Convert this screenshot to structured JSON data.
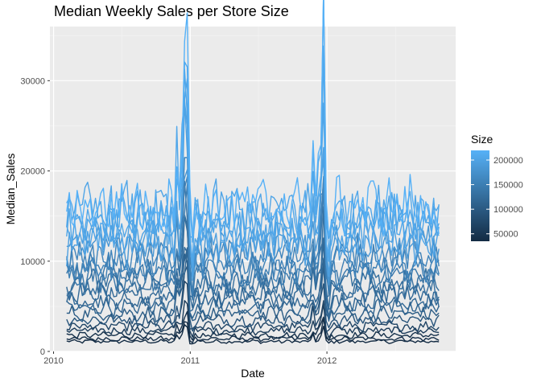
{
  "chart_data": {
    "type": "line",
    "title": "Median Weekly Sales per Store Size",
    "xlabel": "Date",
    "ylabel": "Median_Sales",
    "x_range": [
      "2010-02-05",
      "2012-10-26"
    ],
    "x_ticks": [
      "2010",
      "2011",
      "2012"
    ],
    "ylim": [
      0,
      36000
    ],
    "y_ticks": [
      0,
      10000,
      20000,
      30000
    ],
    "grid": true,
    "background": "#ebebeb",
    "legend": {
      "title": "Size",
      "placement": "right",
      "type": "colorbar",
      "min": 34875,
      "max": 219622,
      "ticks": [
        50000,
        100000,
        150000,
        200000
      ],
      "color_low": "#132b43",
      "color_high": "#56b1f7"
    },
    "series_note": "Weekly median sales lines, one per store, colored by store Size",
    "series": [
      {
        "size": 219622,
        "base": 16200,
        "holiday_peak": 35200
      },
      {
        "size": 205863,
        "base": 14800,
        "holiday_peak": 33600
      },
      {
        "size": 203819,
        "base": 13900,
        "holiday_peak": 29000
      },
      {
        "size": 203007,
        "base": 15600,
        "holiday_peak": 27000
      },
      {
        "size": 200898,
        "base": 12900,
        "holiday_peak": 25000
      },
      {
        "size": 196321,
        "base": 12200,
        "holiday_peak": 23500
      },
      {
        "size": 184109,
        "base": 11400,
        "holiday_peak": 22000
      },
      {
        "size": 158114,
        "base": 10600,
        "holiday_peak": 19500
      },
      {
        "size": 155078,
        "base": 9800,
        "holiday_peak": 18500
      },
      {
        "size": 151315,
        "base": 9100,
        "holiday_peak": 17500
      },
      {
        "size": 140167,
        "base": 8400,
        "holiday_peak": 16000
      },
      {
        "size": 128107,
        "base": 7700,
        "holiday_peak": 15000
      },
      {
        "size": 126512,
        "base": 7000,
        "holiday_peak": 14000
      },
      {
        "size": 120653,
        "base": 6300,
        "holiday_peak": 12500
      },
      {
        "size": 118221,
        "base": 5600,
        "holiday_peak": 11500
      },
      {
        "size": 114533,
        "base": 4900,
        "holiday_peak": 10500
      },
      {
        "size": 103681,
        "base": 4200,
        "holiday_peak": 9200
      },
      {
        "size": 93188,
        "base": 3500,
        "holiday_peak": 8200
      },
      {
        "size": 70713,
        "base": 2800,
        "holiday_peak": 7000
      },
      {
        "size": 57197,
        "base": 2300,
        "holiday_peak": 5600
      },
      {
        "size": 42988,
        "base": 1800,
        "holiday_peak": 4000
      },
      {
        "size": 39690,
        "base": 1400,
        "holiday_peak": 3200
      },
      {
        "size": 34875,
        "base": 1100,
        "holiday_peak": 2600
      }
    ]
  }
}
